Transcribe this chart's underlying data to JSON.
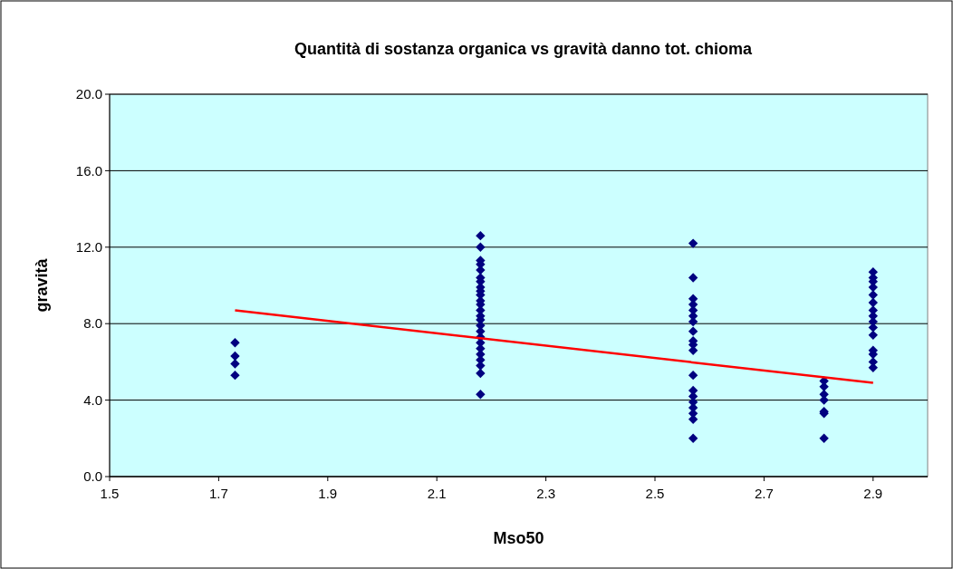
{
  "chart_data": {
    "type": "scatter",
    "title": "Quantità di sostanza organica vs gravità danno tot. chioma",
    "xlabel": "Mso50",
    "ylabel": "gravità",
    "xlim": [
      1.5,
      3.0
    ],
    "xticks": [
      1.5,
      1.7,
      1.9,
      2.1,
      2.3,
      2.5,
      2.7,
      2.9
    ],
    "ylim": [
      0,
      20
    ],
    "yticks": [
      {
        "value": 0,
        "label": "0.0"
      },
      {
        "value": 4,
        "label": "4.0"
      },
      {
        "value": 8,
        "label": "8.0"
      },
      {
        "value": 12,
        "label": "12.0"
      },
      {
        "value": 16,
        "label": "16.0"
      },
      {
        "value": 20,
        "label": "20.0"
      }
    ],
    "grid": "y",
    "marker": "diamond",
    "series": [
      {
        "type": "scatter",
        "color": "#000080",
        "x": [
          1.73,
          1.73,
          1.73,
          1.73
        ],
        "values": [
          7.0,
          6.3,
          5.9,
          5.3
        ]
      },
      {
        "type": "scatter",
        "color": "#000080",
        "x": [
          2.18,
          2.18,
          2.18,
          2.18,
          2.18,
          2.18,
          2.18,
          2.18,
          2.18,
          2.18,
          2.18,
          2.18,
          2.18,
          2.18,
          2.18,
          2.18,
          2.18,
          2.18,
          2.18,
          2.18,
          2.18,
          2.18,
          2.18,
          2.18,
          2.18
        ],
        "values": [
          12.6,
          12.0,
          11.3,
          11.1,
          10.8,
          10.4,
          10.2,
          9.9,
          9.7,
          9.5,
          9.2,
          9.0,
          8.7,
          8.4,
          8.2,
          7.9,
          7.6,
          7.3,
          7.0,
          6.7,
          6.4,
          6.1,
          5.8,
          5.4,
          4.3
        ]
      },
      {
        "type": "scatter",
        "color": "#000080",
        "x": [
          2.57,
          2.57,
          2.57,
          2.57,
          2.57,
          2.57,
          2.57,
          2.57,
          2.57,
          2.57,
          2.57,
          2.57,
          2.57,
          2.57,
          2.57,
          2.57,
          2.57,
          2.57,
          2.57
        ],
        "values": [
          12.2,
          10.4,
          9.3,
          9.0,
          8.7,
          8.4,
          8.1,
          7.6,
          7.1,
          6.9,
          6.6,
          5.3,
          4.5,
          4.2,
          3.9,
          3.6,
          3.3,
          3.0,
          2.0
        ]
      },
      {
        "type": "scatter",
        "color": "#000080",
        "x": [
          2.81,
          2.81,
          2.81,
          2.81,
          2.81,
          2.81,
          2.81
        ],
        "values": [
          5.0,
          4.7,
          4.3,
          4.0,
          3.4,
          3.3,
          2.0
        ]
      },
      {
        "type": "scatter",
        "color": "#000080",
        "x": [
          2.9,
          2.9,
          2.9,
          2.9,
          2.9,
          2.9,
          2.9,
          2.9,
          2.9,
          2.9,
          2.9,
          2.9,
          2.9,
          2.9,
          2.9
        ],
        "values": [
          10.7,
          10.4,
          10.2,
          9.9,
          9.5,
          9.1,
          8.7,
          8.4,
          8.1,
          7.8,
          7.4,
          6.6,
          6.4,
          6.0,
          5.7
        ]
      },
      {
        "type": "line",
        "marker": "none",
        "color": "#ff0000",
        "line_style": "solid",
        "x": [
          1.73,
          2.9
        ],
        "values": [
          8.7,
          4.9
        ]
      }
    ]
  }
}
